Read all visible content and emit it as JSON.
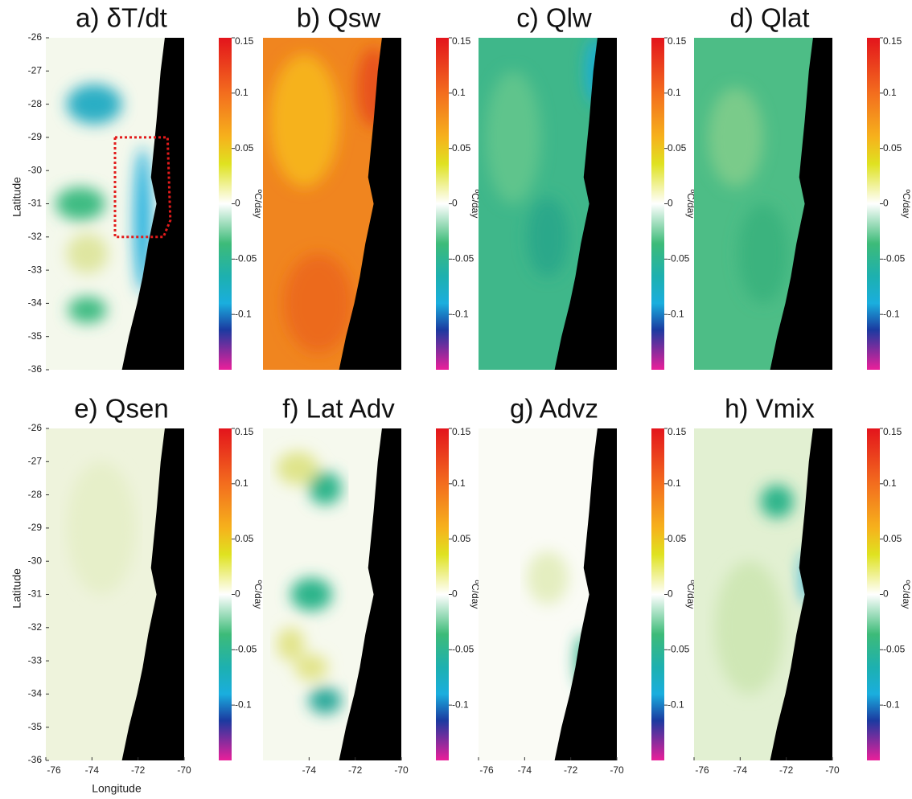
{
  "figure": {
    "ylabel": "Latitude",
    "xlabel": "Longitude",
    "ylim": [
      -36,
      -26
    ],
    "yticks": [
      -26,
      -27,
      -28,
      -29,
      -30,
      -31,
      -32,
      -33,
      -34,
      -35,
      -36
    ],
    "xlim": [
      -76,
      -70
    ],
    "colorbar": {
      "label": "ºC/day",
      "lim": [
        -0.15,
        0.15
      ],
      "ticks": [
        0.15,
        0.1,
        0.05,
        0,
        -0.05,
        -0.1
      ]
    },
    "panels": [
      {
        "title": "a) δT/dt",
        "y_axis": true,
        "xticks": []
      },
      {
        "title": "b) Qsw",
        "y_axis": false,
        "xticks": []
      },
      {
        "title": "c) Qlw",
        "y_axis": false,
        "xticks": []
      },
      {
        "title": "d) Qlat",
        "y_axis": false,
        "xticks": []
      },
      {
        "title": "e) Qsen",
        "y_axis": true,
        "xticks": [
          -76,
          -74,
          -72,
          -70
        ]
      },
      {
        "title": "f) Lat Adv",
        "y_axis": false,
        "xticks": [
          -74,
          -72,
          -70
        ]
      },
      {
        "title": "g) Advz",
        "y_axis": false,
        "xticks": [
          -76,
          -74,
          -72,
          -70
        ]
      },
      {
        "title": "h) Vmix",
        "y_axis": false,
        "xticks": [
          -76,
          -74,
          -72,
          -70
        ]
      }
    ]
  }
}
